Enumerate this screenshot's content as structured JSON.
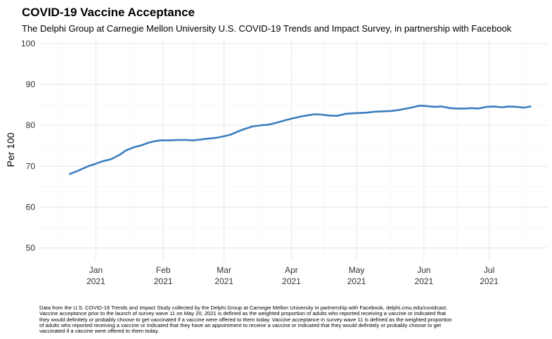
{
  "title": "COVID-19 Vaccine Acceptance",
  "subtitle": "The Delphi Group at Carnegie Mellon University U.S. COVID-19 Trends and Impact Survey, in partnership with Facebook",
  "caption_lines": [
    "Data from the U.S. COVID-19 Trends and Impact Study collected by the Delphi Group at Carnegie Mellon University in partnership with Facebook, delphi.cmu.edu/covidcast.",
    "Vaccine acceptance prior to the launch of survey wave 11 on May 20, 2021 is defined as the weighted proportion of adults who reported receiving a vaccine or indicated that",
    "they would definitely or probably choose to get vaccinated if a vaccine were offered to them today. Vaccine acceptance in survey wave 11 is defined as the weighted proportion",
    "of adults who reported receiving a vaccine or indicated that they have an appointment to receive a vaccine or indicated that they would definitely or probably choose to get",
    "vaccinated if a vaccine were offered to them today."
  ],
  "colors": {
    "line": "#3a7ebf",
    "grid": "#e6e6e6",
    "text": "#000000",
    "tick": "#333333"
  },
  "chart_data": {
    "type": "line",
    "title": "COVID-19 Vaccine Acceptance",
    "xlabel": "",
    "ylabel": "Per 100",
    "ylim": [
      47,
      101
    ],
    "xlim_days": [
      -26,
      208
    ],
    "y_ticks": [
      50,
      60,
      70,
      80,
      90,
      100
    ],
    "x_ticks": [
      {
        "day": 0,
        "month": "Jan",
        "year": "2021"
      },
      {
        "day": 31,
        "month": "Feb",
        "year": "2021"
      },
      {
        "day": 59,
        "month": "Mar",
        "year": "2021"
      },
      {
        "day": 90,
        "month": "Apr",
        "year": "2021"
      },
      {
        "day": 120,
        "month": "May",
        "year": "2021"
      },
      {
        "day": 151,
        "month": "Jun",
        "year": "2021"
      },
      {
        "day": 181,
        "month": "Jul",
        "year": "2021"
      }
    ],
    "series": [
      {
        "name": "Vaccine acceptance",
        "x_day": [
          -12,
          -9,
          -6,
          -3,
          0,
          3,
          7,
          11,
          14,
          18,
          21,
          24,
          27,
          30,
          34,
          38,
          41,
          45,
          48,
          51,
          55,
          58,
          62,
          65,
          68,
          72,
          76,
          79,
          83,
          87,
          90,
          94,
          97,
          101,
          104,
          107,
          111,
          115,
          118,
          121,
          125,
          128,
          132,
          136,
          139,
          142,
          145,
          149,
          152,
          156,
          159,
          163,
          166,
          170,
          173,
          176,
          180,
          183,
          187,
          190,
          194,
          197,
          200
        ],
        "values": [
          68.1,
          68.7,
          69.4,
          70.1,
          70.6,
          71.2,
          71.7,
          72.8,
          73.9,
          74.7,
          75.1,
          75.7,
          76.1,
          76.3,
          76.3,
          76.4,
          76.4,
          76.3,
          76.5,
          76.7,
          76.9,
          77.2,
          77.7,
          78.4,
          79.0,
          79.7,
          80.0,
          80.1,
          80.6,
          81.2,
          81.6,
          82.1,
          82.4,
          82.7,
          82.6,
          82.4,
          82.3,
          82.8,
          82.9,
          83.0,
          83.1,
          83.3,
          83.4,
          83.5,
          83.7,
          84.0,
          84.3,
          84.8,
          84.7,
          84.5,
          84.6,
          84.2,
          84.1,
          84.1,
          84.2,
          84.1,
          84.5,
          84.6,
          84.4,
          84.6,
          84.5,
          84.3,
          84.6
        ]
      }
    ]
  }
}
